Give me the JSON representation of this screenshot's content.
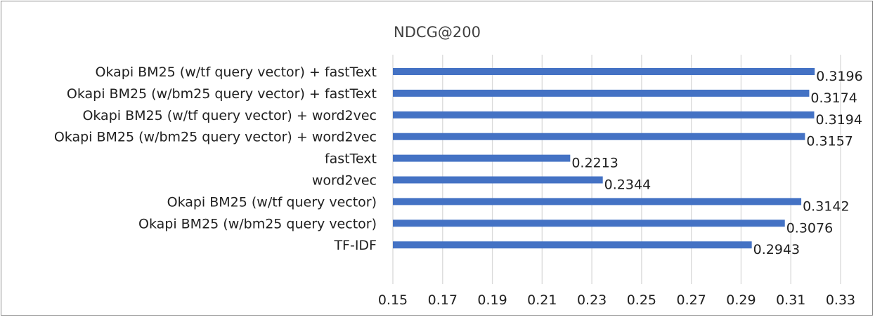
{
  "chart_data": {
    "type": "bar",
    "orientation": "horizontal",
    "title": "NDCG@200",
    "xlabel": "",
    "ylabel": "",
    "categories": [
      "Okapi BM25 (w/tf query vector) + fastText",
      "Okapi BM25 (w/bm25 query vector) + fastText",
      "Okapi BM25 (w/tf query vector) + word2vec",
      "Okapi BM25 (w/bm25 query vector) + word2vec",
      "fastText",
      "word2vec",
      "Okapi BM25 (w/tf query vector)",
      "Okapi BM25 (w/bm25 query vector)",
      "TF-IDF"
    ],
    "values": [
      0.3196,
      0.3174,
      0.3194,
      0.3157,
      0.2213,
      0.2344,
      0.3142,
      0.3076,
      0.2943
    ],
    "value_labels": [
      "0.3196",
      "0.3174",
      "0.3194",
      "0.3157",
      "0.2213",
      "0.2344",
      "0.3142",
      "0.3076",
      "0.2943"
    ],
    "xlim": [
      0.15,
      0.33
    ],
    "xticks": [
      "0.15",
      "0.17",
      "0.19",
      "0.21",
      "0.23",
      "0.25",
      "0.27",
      "0.29",
      "0.31",
      "0.33"
    ],
    "grid": true,
    "legend": "none",
    "bar_color": "#4472c4"
  }
}
